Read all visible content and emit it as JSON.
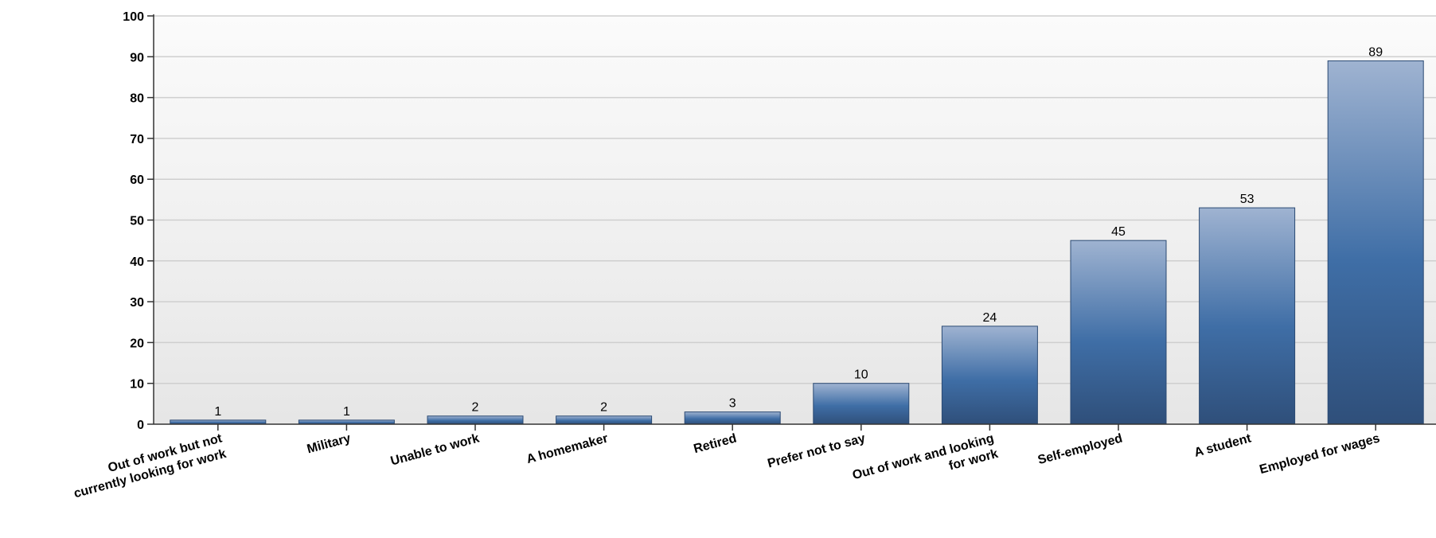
{
  "chart_data": {
    "type": "bar",
    "title": "",
    "xlabel": "",
    "ylabel": "",
    "ylim": [
      0,
      100
    ],
    "yticks": [
      0,
      10,
      20,
      30,
      40,
      50,
      60,
      70,
      80,
      90,
      100
    ],
    "grid": true,
    "legend": "none",
    "categories": [
      [
        "Out of work but not",
        "currently looking for work"
      ],
      [
        "Military"
      ],
      [
        "Unable to work"
      ],
      [
        "A homemaker"
      ],
      [
        "Retired"
      ],
      [
        "Prefer not to say"
      ],
      [
        "Out of work and looking",
        "for work"
      ],
      [
        "Self-employed"
      ],
      [
        "A student"
      ],
      [
        "Employed for wages"
      ]
    ],
    "values": [
      1,
      1,
      2,
      2,
      3,
      10,
      24,
      45,
      53,
      89
    ],
    "colors": {
      "bar_top": "#9fb3d1",
      "bar_mid": "#3f6ea6",
      "bar_bottom": "#2f4f7a",
      "grid": "#cfcfcf",
      "plot_top": "#fbfbfb",
      "plot_bottom": "#e6e6e6"
    }
  }
}
